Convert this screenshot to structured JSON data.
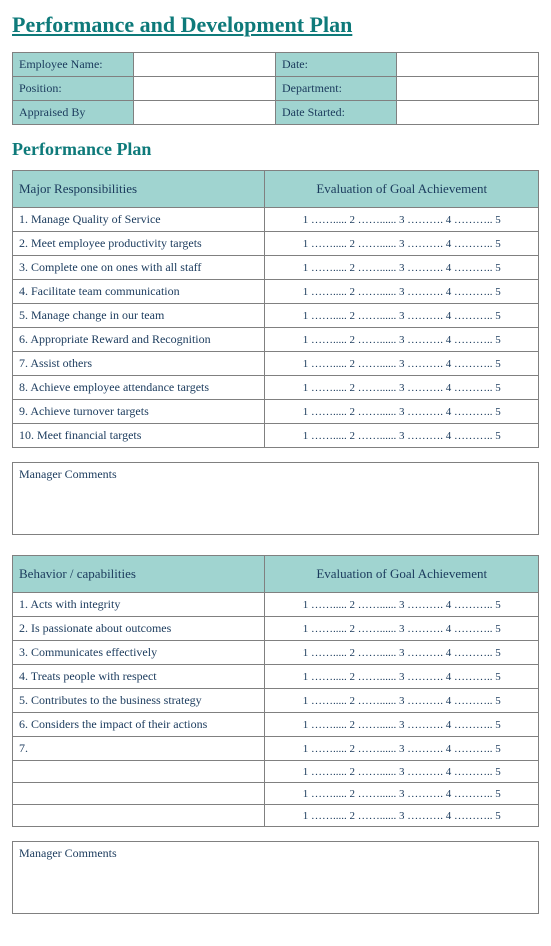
{
  "title": "Performance and Development Plan",
  "info": {
    "rows": [
      {
        "label1": "Employee Name:",
        "value1": "",
        "label2": "Date:",
        "value2": ""
      },
      {
        "label1": "Position:",
        "value1": "",
        "label2": "Department:",
        "value2": ""
      },
      {
        "label1": "Appraised By",
        "value1": "",
        "label2": "Date Started:",
        "value2": ""
      }
    ]
  },
  "section1_title": "Performance Plan",
  "eval_scale": "1 ……..... 2 ……...... 3 ………. 4 ……….. 5",
  "responsibilities": {
    "header_left": "Major Responsibilities",
    "header_right": "Evaluation of Goal Achievement",
    "rows": [
      "1. Manage Quality of Service",
      "2. Meet employee productivity targets",
      "3. Complete one on ones with all staff",
      "4. Facilitate team communication",
      "5. Manage change in our team",
      "6. Appropriate Reward and Recognition",
      "7. Assist others",
      "8. Achieve employee attendance targets",
      "9. Achieve turnover targets",
      "10. Meet financial targets"
    ]
  },
  "manager_comments_label": "Manager Comments",
  "behaviors": {
    "header_left": "Behavior / capabilities",
    "header_right": "Evaluation of Goal Achievement",
    "rows": [
      "1. Acts with integrity",
      "2. Is passionate about outcomes",
      "3. Communicates effectively",
      "4. Treats people with respect",
      "5. Contributes to the business strategy",
      "6. Considers the impact of their actions",
      "7.",
      "",
      "",
      ""
    ]
  },
  "colors": {
    "teal_header": "#a0d4d0",
    "title_color": "#0e7a7a",
    "text_color": "#1a3a5c",
    "border_color": "#808080"
  }
}
